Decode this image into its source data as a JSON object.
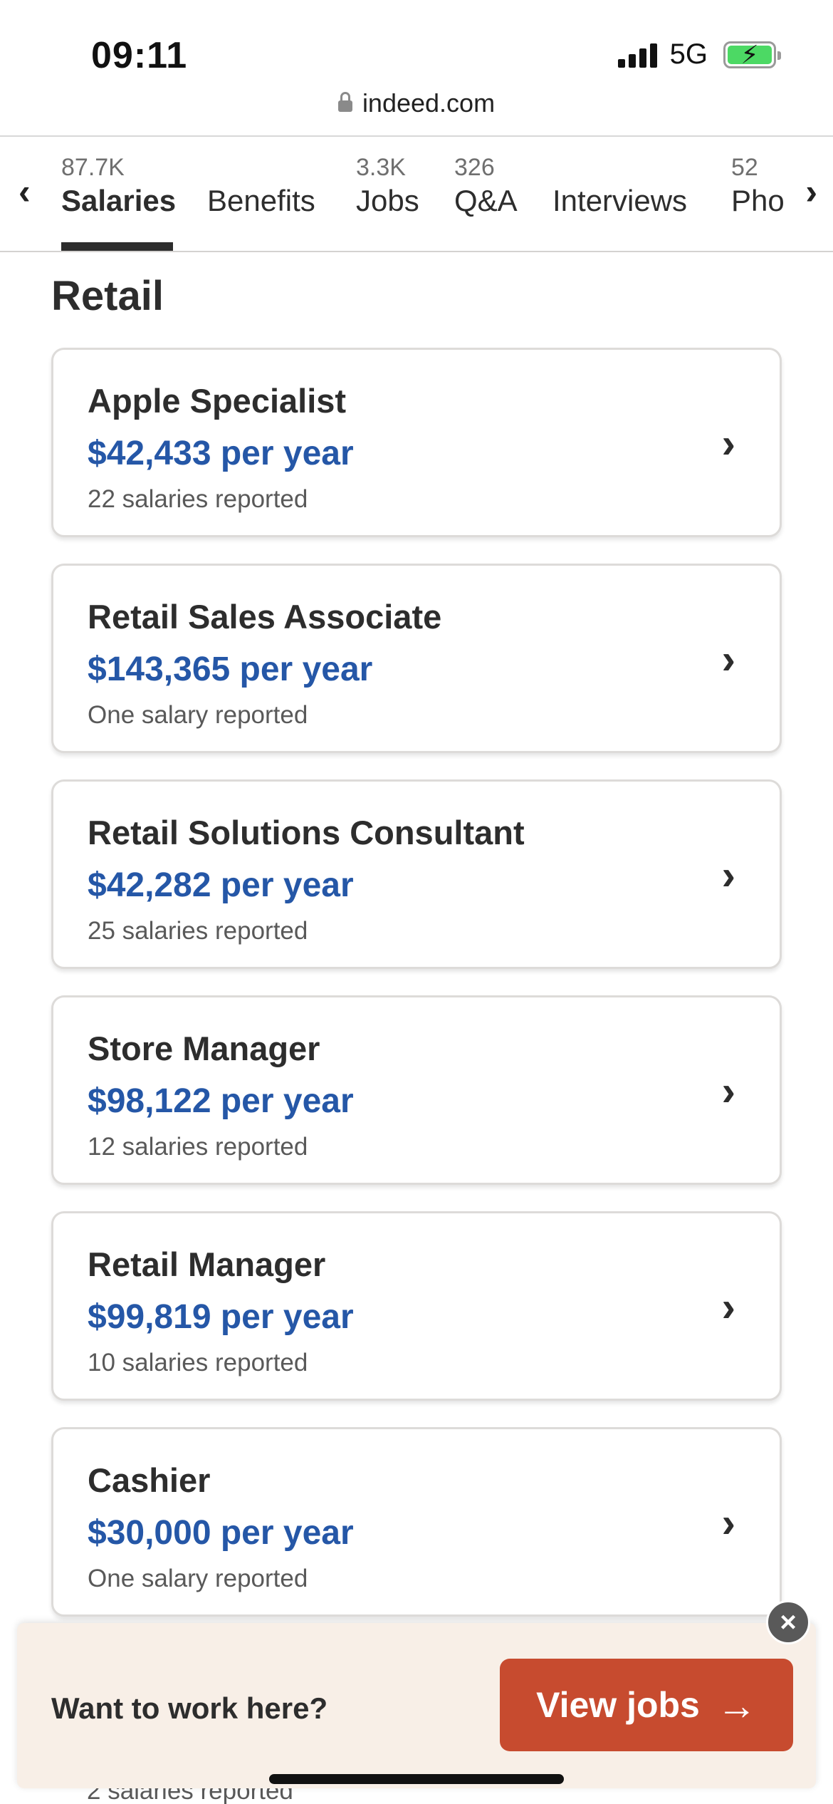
{
  "status": {
    "time": "09:11",
    "network": "5G",
    "bolt_glyph": "⚡"
  },
  "browser": {
    "url": "indeed.com"
  },
  "tabs": [
    {
      "count": "87.7K",
      "label": "Salaries",
      "active": true
    },
    {
      "count": "",
      "label": "Benefits"
    },
    {
      "count": "3.3K",
      "label": "Jobs"
    },
    {
      "count": "326",
      "label": "Q&A"
    },
    {
      "count": "",
      "label": "Interviews"
    },
    {
      "count": "52",
      "label": "Pho"
    }
  ],
  "tab_nav": {
    "left_glyph": "‹",
    "right_glyph": "›"
  },
  "section": {
    "title": "Retail",
    "jobs": [
      {
        "title": "Apple Specialist",
        "salary": "$42,433 per year",
        "reported": "22 salaries reported"
      },
      {
        "title": "Retail Sales Associate",
        "salary": "$143,365 per year",
        "reported": "One salary reported"
      },
      {
        "title": "Retail Solutions Consultant",
        "salary": "$42,282 per year",
        "reported": "25 salaries reported"
      },
      {
        "title": "Store Manager",
        "salary": "$98,122 per year",
        "reported": "12 salaries reported"
      },
      {
        "title": "Retail Manager",
        "salary": "$99,819 per year",
        "reported": "10 salaries reported"
      },
      {
        "title": "Cashier",
        "salary": "$30,000 per year",
        "reported": "One salary reported"
      }
    ],
    "partial_reported": "2 salaries reported",
    "chevron_glyph": "›"
  },
  "banner": {
    "text": "Want to work here?",
    "button_label": "View jobs",
    "button_arrow": "→",
    "close_glyph": "×"
  },
  "colors": {
    "accent_blue": "#2557a7",
    "cta_red": "#c74b2f",
    "banner_bg": "#f8efe7",
    "battery_green": "#4cd964"
  },
  "icons": [
    "lock-icon",
    "signal-icon",
    "battery-icon",
    "chevron-left-icon",
    "chevron-right-icon",
    "close-icon",
    "arrow-right-icon"
  ]
}
